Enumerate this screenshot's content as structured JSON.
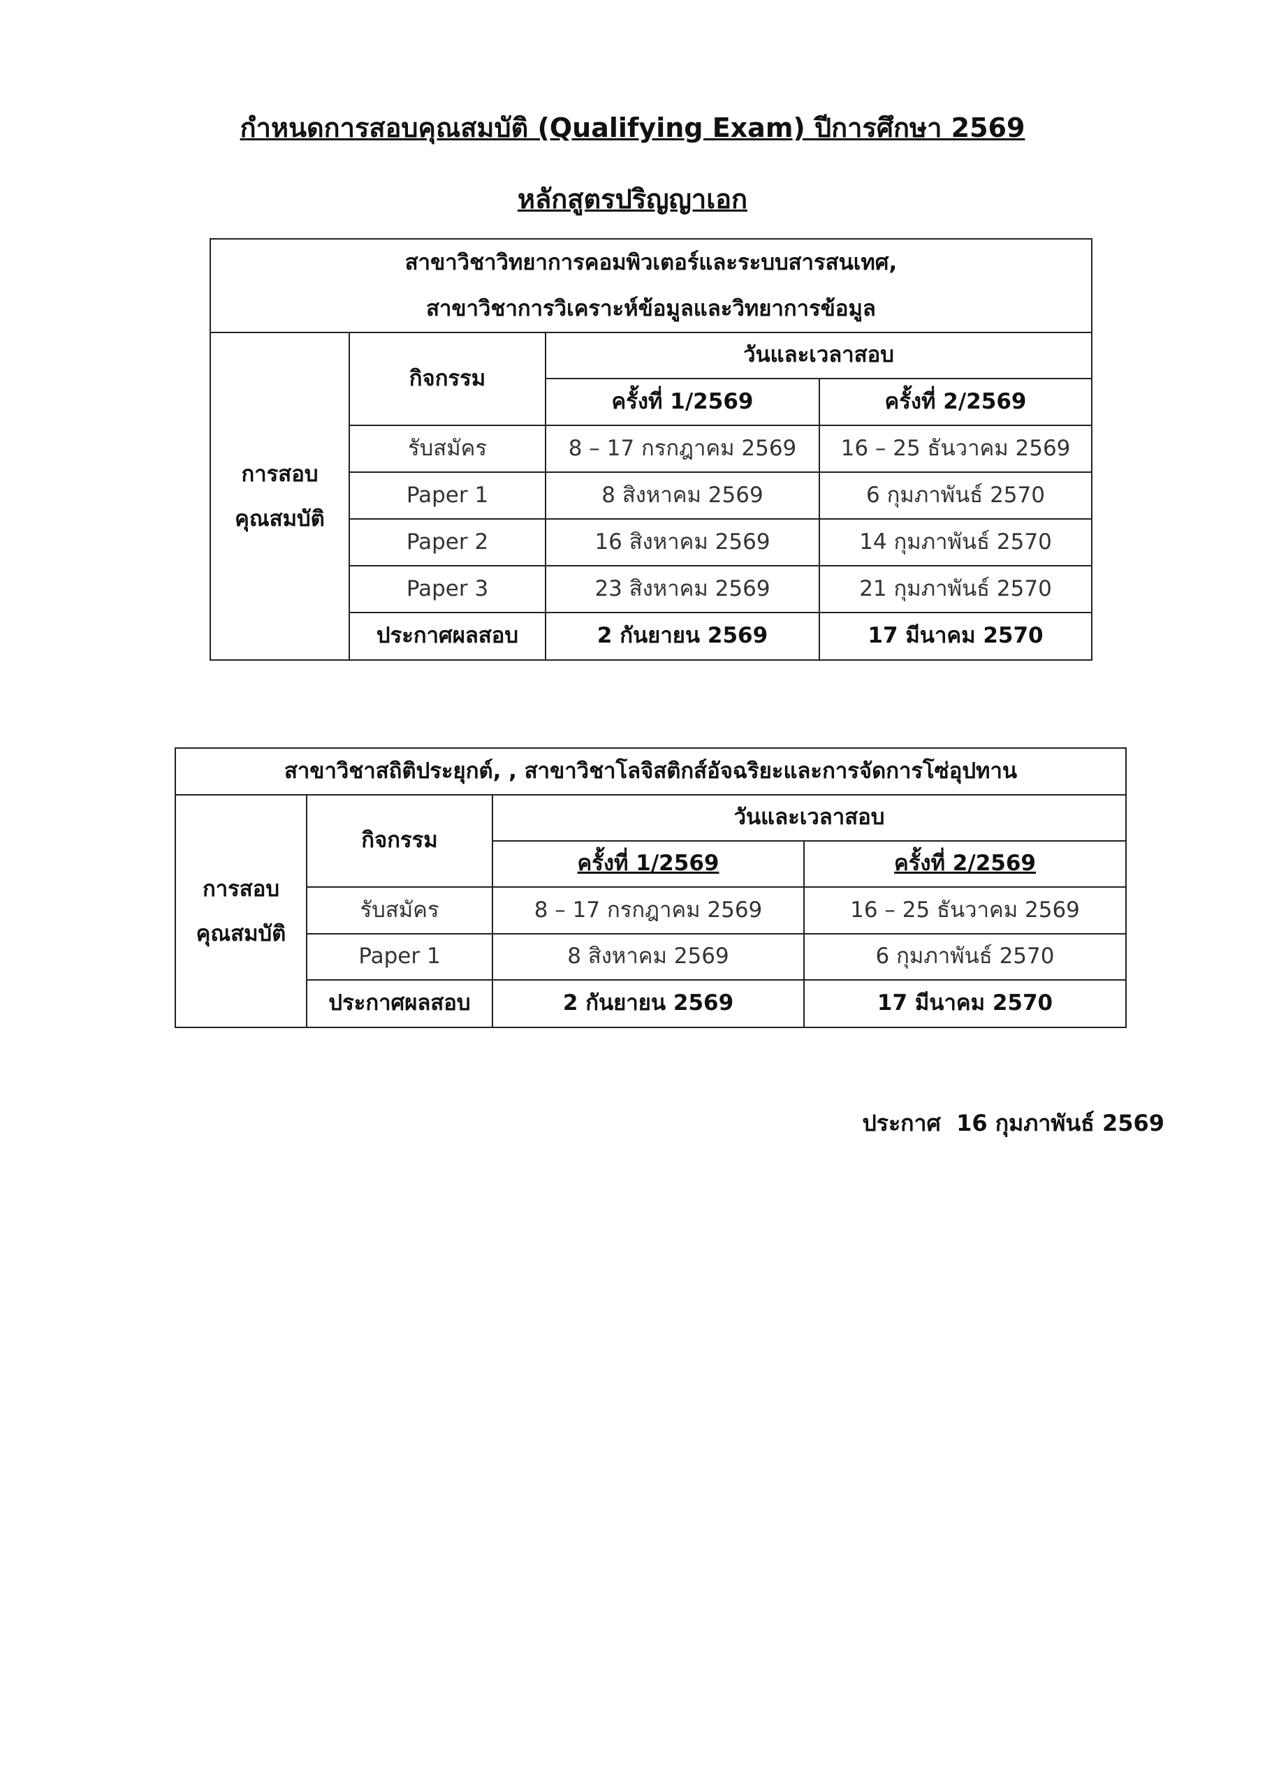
{
  "title": "กำหนดการสอบคุณสมบัติ (Qualifying Exam) ปีการศึกษา 2569",
  "subtitle": "หลักสูตรปริญญาเอก",
  "table1": {
    "program_line1": "สาขาวิชาวิทยาการคอมพิวเตอร์และระบบสารสนเทศ,",
    "program_line2": "สาขาวิชาการวิเคราะห์ข้อมูลและวิทยาการข้อมูล",
    "group_label_line1": "การสอบ",
    "group_label_line2": "คุณสมบัติ",
    "activity_header": "กิจกรรม",
    "date_header": "วันและเวลาสอบ",
    "round1_header": "ครั้งที่ 1/2569",
    "round2_header": "ครั้งที่ 2/2569",
    "rows": [
      {
        "activity": "รับสมัคร",
        "round1": "8 – 17 กรกฎาคม 2569",
        "round2": "16 – 25  ธันวาคม 2569"
      },
      {
        "activity": "Paper 1",
        "round1": "8  สิงหาคม 2569",
        "round2": "6 กุมภาพันธ์ 2570"
      },
      {
        "activity": "Paper 2",
        "round1": "16 สิงหาคม 2569",
        "round2": "14 กุมภาพันธ์ 2570"
      },
      {
        "activity": "Paper 3",
        "round1": "23 สิงหาคม 2569",
        "round2": "21 กุมภาพันธ์ 2570"
      },
      {
        "activity": "ประกาศผลสอบ",
        "round1": "2 กันยายน 2569",
        "round2": "17 มีนาคม 2570"
      }
    ]
  },
  "table2": {
    "program_line1": "สาขาวิชาสถิติประยุกต์, , สาขาวิชาโลจิสติกส์อัจฉริยะและการจัดการโซ่อุปทาน",
    "group_label_line1": "การสอบ",
    "group_label_line2": "คุณสมบัติ",
    "activity_header": "กิจกรรม",
    "date_header": "วันและเวลาสอบ",
    "round1_header": "ครั้งที่ 1/2569",
    "round2_header": "ครั้งที่ 2/2569",
    "rows": [
      {
        "activity": "รับสมัคร",
        "round1": "8 – 17 กรกฎาคม 2569",
        "round2": "16 – 25  ธันวาคม 2569"
      },
      {
        "activity": "Paper 1",
        "round1": "8 สิงหาคม 2569",
        "round2": "6 กุมภาพันธ์ 2570"
      },
      {
        "activity": "ประกาศผลสอบ",
        "round1": "2 กันยายน 2569",
        "round2": "17 มีนาคม 2570"
      }
    ]
  },
  "footer": "ประกาศ  16 กุมภาพันธ์ 2569"
}
